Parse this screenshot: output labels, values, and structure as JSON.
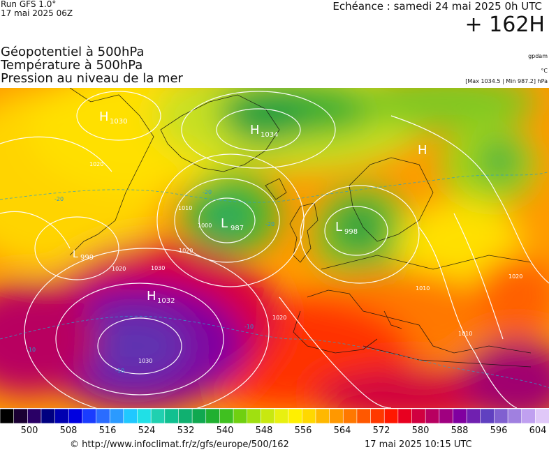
{
  "header": {
    "run": "Run GFS 1.0°",
    "run_date": "17 mai 2025 06Z",
    "echeance": "Echéance : samedi 24 mai 2025 0h UTC",
    "lead": "+ 162H",
    "line1": "Géopotentiel à 500hPa",
    "line2": "Température à 500hPa",
    "line3": "Pression au niveau de la mer",
    "unit1": "gpdam",
    "unit2": "°C",
    "minmax": "[Max 1034.5 | Min 987.2] hPa"
  },
  "map": {
    "centers": [
      {
        "letter": "H",
        "value": "1030"
      },
      {
        "letter": "H",
        "value": "1034"
      },
      {
        "letter": "H",
        "value": ""
      },
      {
        "letter": "L",
        "value": "987"
      },
      {
        "letter": "L",
        "value": "998"
      },
      {
        "letter": "L",
        "value": "999"
      },
      {
        "letter": "H",
        "value": "1032"
      }
    ],
    "isobar_labels": [
      "1020",
      "1010",
      "1000",
      "1020",
      "1030",
      "1030",
      "1020",
      "1010",
      "1020",
      "1010",
      "1020"
    ],
    "temp_labels": [
      "-20",
      "-20",
      "-20",
      "-10",
      "-10",
      "-10"
    ]
  },
  "scale": {
    "ticks": [
      "500",
      "508",
      "516",
      "524",
      "532",
      "540",
      "548",
      "556",
      "564",
      "572",
      "580",
      "588",
      "596",
      "604"
    ],
    "colors": [
      "#000000",
      "#1a0033",
      "#2a0066",
      "#000080",
      "#0000b0",
      "#0000e0",
      "#1a3cff",
      "#2a6cff",
      "#2b9aff",
      "#20c8ff",
      "#20e0e6",
      "#20d0b0",
      "#10c090",
      "#10b070",
      "#10a850",
      "#20b030",
      "#40c020",
      "#70d010",
      "#a0e010",
      "#c8e810",
      "#e8f010",
      "#fff000",
      "#ffd800",
      "#ffb800",
      "#ff9800",
      "#ff7800",
      "#ff5800",
      "#ff3800",
      "#ff1800",
      "#e80020",
      "#d00040",
      "#b80060",
      "#a00080",
      "#8000a0",
      "#7020b0",
      "#6040c0",
      "#8060d0",
      "#a080e0",
      "#c0a0f0",
      "#e0c8f8"
    ]
  },
  "footer": {
    "url": "© http://www.infoclimat.fr/z/gfs/europe/500/162",
    "timestamp": "17 mai 2025 10:15 UTC"
  }
}
